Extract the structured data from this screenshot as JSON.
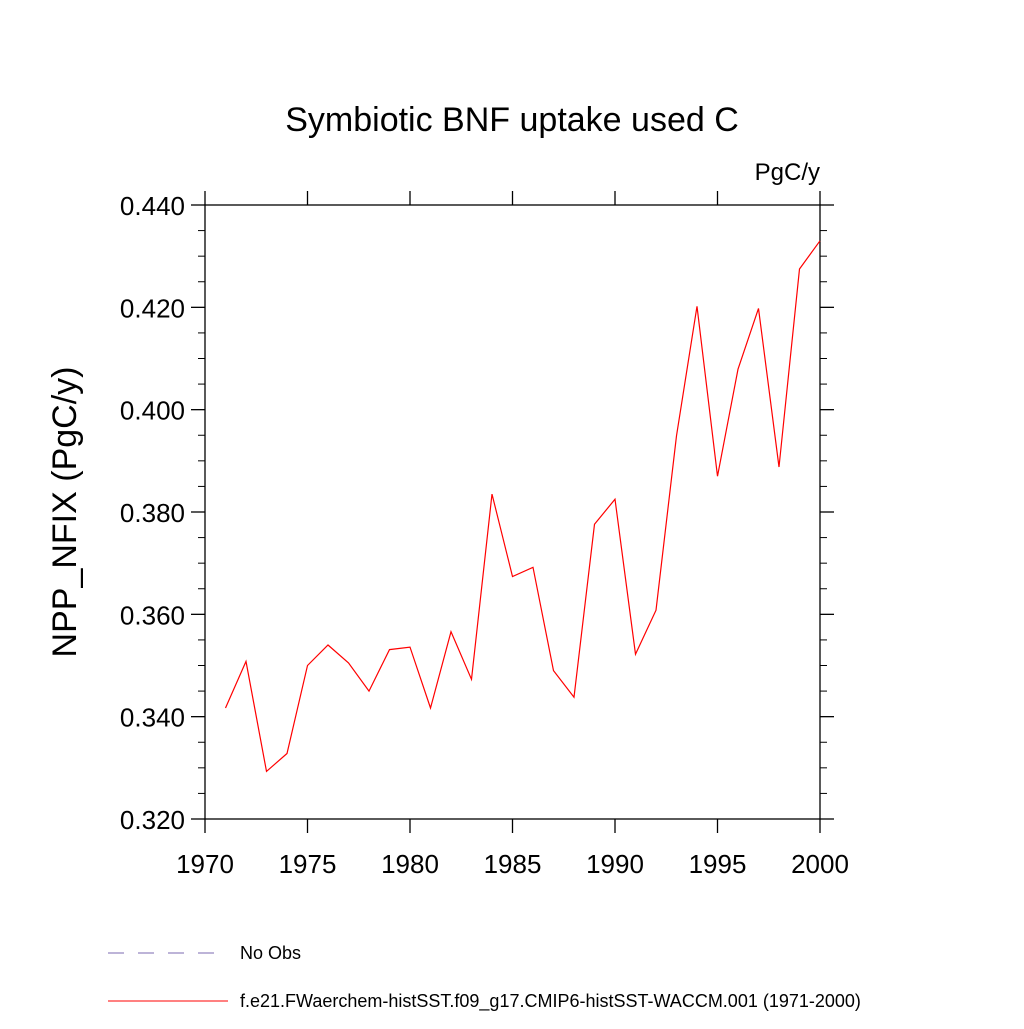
{
  "chart_data": {
    "type": "line",
    "title": "Symbiotic BNF uptake used C",
    "units_label": "PgC/y",
    "xlabel": "",
    "ylabel": "NPP_NFIX  (PgC/y)",
    "xlim": [
      1970,
      2000
    ],
    "ylim": [
      0.32,
      0.44
    ],
    "x_ticks": [
      1970,
      1975,
      1980,
      1985,
      1990,
      1995,
      2000
    ],
    "x_tick_labels": [
      "1970",
      "1975",
      "1980",
      "1985",
      "1990",
      "1995",
      "2000"
    ],
    "y_ticks": [
      0.32,
      0.34,
      0.36,
      0.38,
      0.4,
      0.42,
      0.44
    ],
    "y_tick_labels": [
      "0.320",
      "0.340",
      "0.360",
      "0.380",
      "0.400",
      "0.420",
      "0.440"
    ],
    "grid": false,
    "legend_position": "bottom-left",
    "series": [
      {
        "name": "f.e21.FWaerchem-histSST.f09_g17.CMIP6-histSST-WACCM.001 (1971-2000)",
        "color": "#ff0000",
        "dash": "solid",
        "x": [
          1971,
          1972,
          1973,
          1974,
          1975,
          1976,
          1977,
          1978,
          1979,
          1980,
          1981,
          1982,
          1983,
          1984,
          1985,
          1986,
          1987,
          1988,
          1989,
          1990,
          1991,
          1992,
          1993,
          1994,
          1995,
          1996,
          1997,
          1998,
          1999,
          2000
        ],
        "y": [
          0.3417,
          0.3508,
          0.3293,
          0.3328,
          0.35,
          0.354,
          0.3505,
          0.345,
          0.3531,
          0.3536,
          0.3417,
          0.3566,
          0.3473,
          0.3835,
          0.3674,
          0.3692,
          0.349,
          0.3438,
          0.3776,
          0.3825,
          0.3522,
          0.3608,
          0.3949,
          0.4202,
          0.387,
          0.4079,
          0.4198,
          0.3888,
          0.4275,
          0.433
        ]
      },
      {
        "name": "No Obs",
        "color": "#7b68b0",
        "dash": "dashed",
        "x": [],
        "y": []
      }
    ]
  }
}
